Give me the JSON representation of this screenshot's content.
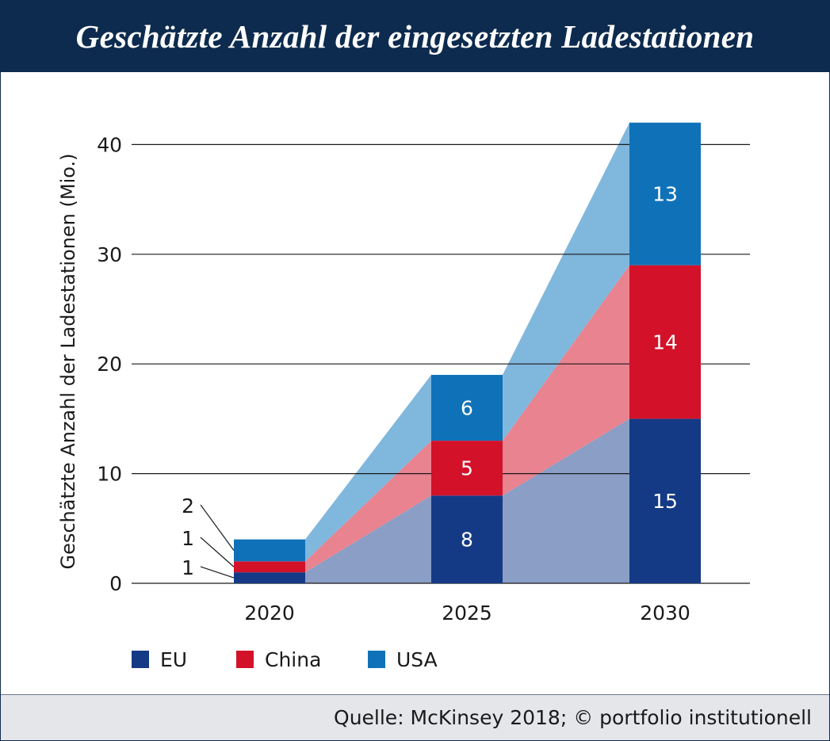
{
  "title": "Geschätzte Anzahl der eingesetzten Ladestationen",
  "source": "Quelle: McKinsey 2018; © portfolio institutionell",
  "colors": {
    "header_bg": "#0d2b4e",
    "EU": "#143a86",
    "China": "#d3122a",
    "USA": "#0f72b8",
    "EU_area": "#8a9ec6",
    "China_area": "#e8838f",
    "USA_area": "#80b7dd",
    "footer_bg": "#e4e6ea"
  },
  "chart_data": {
    "type": "bar",
    "stacked": true,
    "categories": [
      "2020",
      "2025",
      "2030"
    ],
    "series": [
      {
        "name": "EU",
        "values": [
          1,
          8,
          15
        ]
      },
      {
        "name": "China",
        "values": [
          1,
          5,
          14
        ]
      },
      {
        "name": "USA",
        "values": [
          2,
          6,
          13
        ]
      }
    ],
    "ylabel": "Geschätzte Anzahl der Ladestationen (Mio.)",
    "xlabel": "",
    "ylim": [
      0,
      40
    ],
    "yticks": [
      0,
      10,
      20,
      30,
      40
    ],
    "grid": true,
    "legend": "bottom-left",
    "data_labels_outside_first_bar": true
  }
}
